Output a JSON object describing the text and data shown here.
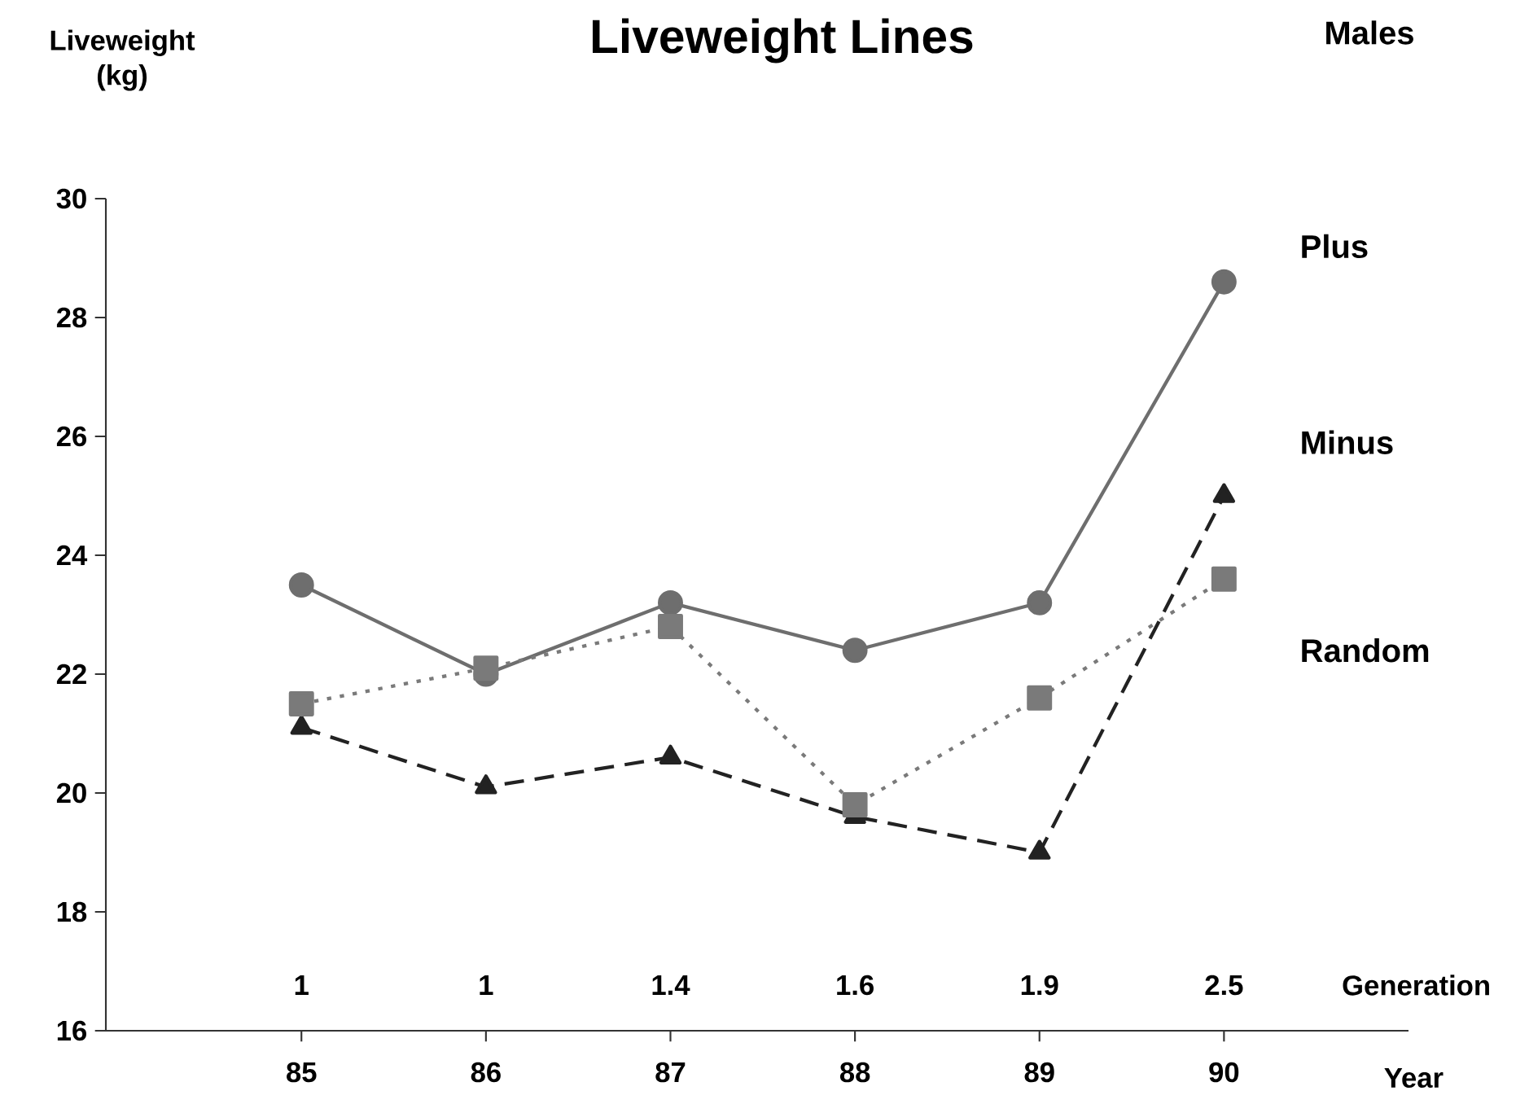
{
  "chart_data": {
    "type": "line",
    "title": "Liveweight Lines",
    "subtitle": "Males",
    "ylabel": "Liveweight (kg)",
    "xlabel": "Year",
    "categories": [
      "85",
      "86",
      "87",
      "88",
      "89",
      "90"
    ],
    "series": [
      {
        "name": "Plus",
        "color": "#6e6e6e",
        "marker": "circle",
        "line_style": "solid",
        "values": [
          23.5,
          22.0,
          23.2,
          22.4,
          23.2,
          28.6
        ]
      },
      {
        "name": "Minus",
        "color": "#222222",
        "marker": "triangle",
        "line_style": "dashed",
        "values": [
          21.1,
          20.1,
          20.6,
          19.6,
          19.0,
          25.0
        ]
      },
      {
        "name": "Random",
        "color": "#7a7a7a",
        "marker": "square",
        "line_style": "dotted",
        "values": [
          21.5,
          22.1,
          22.8,
          19.8,
          21.6,
          23.6
        ]
      }
    ],
    "ylim": [
      16,
      30
    ],
    "yticks": [
      16,
      18,
      20,
      22,
      24,
      26,
      28,
      30
    ],
    "annotations": [
      "1",
      "1",
      "1.4",
      "1.6",
      "1.9",
      "2.5",
      "Generation"
    ]
  }
}
